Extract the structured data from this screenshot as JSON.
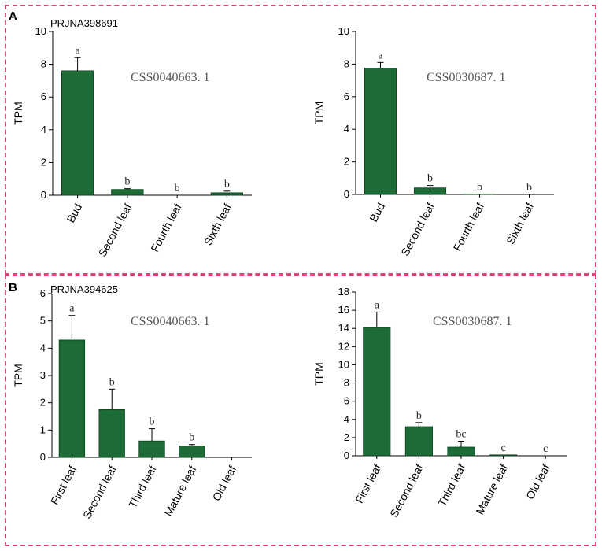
{
  "panels": {
    "a": {
      "letter": "A",
      "dataset": "PRJNA398691"
    },
    "b": {
      "letter": "B",
      "dataset": "PRJNA394625"
    }
  },
  "colors": {
    "bar": "#1d6b36",
    "frame": "#e0457a"
  },
  "chart_data": [
    {
      "type": "bar",
      "title": "CSS0040663. 1",
      "xlabel": "",
      "ylabel": "TPM",
      "ylim": [
        0,
        10
      ],
      "yticks": [
        0,
        2,
        4,
        6,
        8,
        10
      ],
      "categories": [
        "Bud",
        "Second leaf",
        "Fourth leaf",
        "Sixth leaf"
      ],
      "values": [
        7.6,
        0.35,
        0.0,
        0.15
      ],
      "errors": [
        0.8,
        0.05,
        0.0,
        0.1
      ],
      "letters": [
        "a",
        "b",
        "b",
        "b"
      ]
    },
    {
      "type": "bar",
      "title": "CSS0030687. 1",
      "xlabel": "",
      "ylabel": "TPM",
      "ylim": [
        0,
        10
      ],
      "yticks": [
        0,
        2,
        4,
        6,
        8,
        10
      ],
      "categories": [
        "Bud",
        "Second leaf",
        "Fourth leaf",
        "Sixth leaf"
      ],
      "values": [
        7.75,
        0.4,
        0.02,
        0.0
      ],
      "errors": [
        0.35,
        0.15,
        0.0,
        0.0
      ],
      "letters": [
        "a",
        "b",
        "b",
        "b"
      ]
    },
    {
      "type": "bar",
      "title": "CSS0040663. 1",
      "xlabel": "",
      "ylabel": "TPM",
      "ylim": [
        0,
        6
      ],
      "yticks": [
        0,
        1,
        2,
        3,
        4,
        5,
        6
      ],
      "categories": [
        "First leaf",
        "Second leaf",
        "Third leaf",
        "Mature leaf",
        "Old leaf"
      ],
      "values": [
        4.3,
        1.75,
        0.6,
        0.42,
        0.0
      ],
      "errors": [
        0.9,
        0.75,
        0.45,
        0.05,
        0.0
      ],
      "letters": [
        "a",
        "b",
        "b",
        "b",
        ""
      ]
    },
    {
      "type": "bar",
      "title": "CSS0030687. 1",
      "xlabel": "",
      "ylabel": "TPM",
      "ylim": [
        0,
        18
      ],
      "yticks": [
        0,
        2,
        4,
        6,
        8,
        10,
        12,
        14,
        16,
        18
      ],
      "categories": [
        "First leaf",
        "Second leaf",
        "Third leaf",
        "Mature leaf",
        "Old leaf"
      ],
      "values": [
        14.1,
        3.2,
        0.95,
        0.1,
        0.0
      ],
      "errors": [
        1.7,
        0.45,
        0.65,
        0.0,
        0.0
      ],
      "letters": [
        "a",
        "b",
        "bc",
        "c",
        "c"
      ]
    }
  ]
}
